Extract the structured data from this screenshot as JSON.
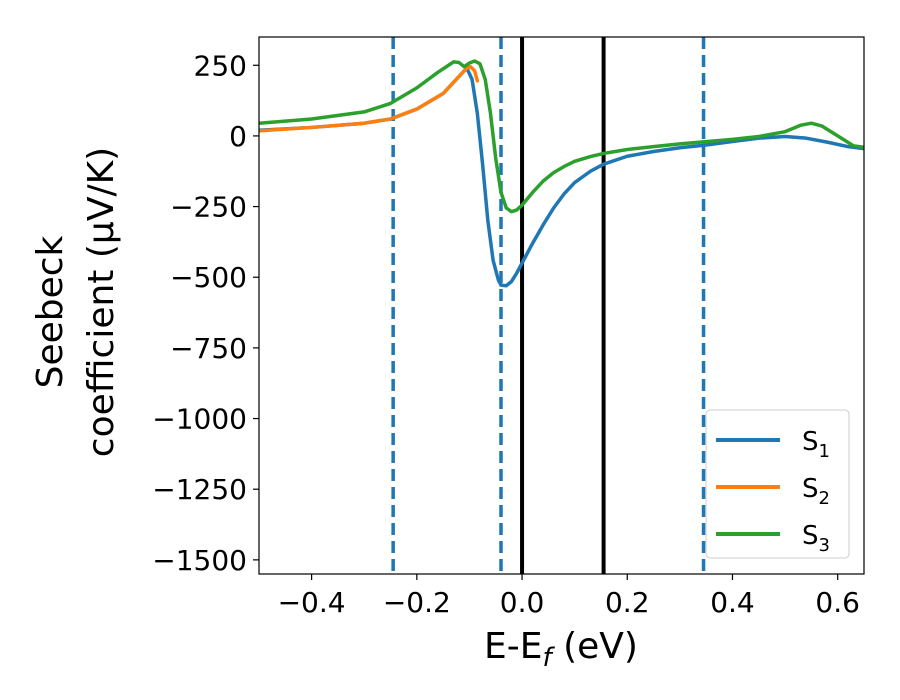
{
  "chart_data": {
    "type": "line",
    "title": "",
    "xlabel": "E-E",
    "xlabel_sub": "f",
    "xlabel_unit": " (eV)",
    "ylabel_line1": "Seebeck",
    "ylabel_line2": "coefficient (μV/K)",
    "xlim": [
      -0.5,
      0.65
    ],
    "ylim": [
      -1550,
      350
    ],
    "x_ticks": [
      {
        "value": -0.4,
        "label": "−0.4"
      },
      {
        "value": -0.2,
        "label": "−0.2"
      },
      {
        "value": 0.0,
        "label": "0.0"
      },
      {
        "value": 0.2,
        "label": "0.2"
      },
      {
        "value": 0.4,
        "label": "0.4"
      },
      {
        "value": 0.6,
        "label": "0.6"
      }
    ],
    "y_ticks": [
      {
        "value": 250,
        "label": "250"
      },
      {
        "value": 0,
        "label": "0"
      },
      {
        "value": -250,
        "label": "−250"
      },
      {
        "value": -500,
        "label": "−500"
      },
      {
        "value": -750,
        "label": "−750"
      },
      {
        "value": -1000,
        "label": "−1000"
      },
      {
        "value": -1250,
        "label": "−1250"
      },
      {
        "value": -1500,
        "label": "−1500"
      }
    ],
    "grid": false,
    "legend_position": "lower-right",
    "vlines": [
      {
        "x": -0.245,
        "style": "dashed",
        "color": "#1f77b4"
      },
      {
        "x": -0.04,
        "style": "dashed",
        "color": "#1f77b4"
      },
      {
        "x": 0.0,
        "style": "solid",
        "color": "#000000"
      },
      {
        "x": 0.155,
        "style": "solid",
        "color": "#000000"
      },
      {
        "x": 0.345,
        "style": "dashed",
        "color": "#1f77b4"
      }
    ],
    "series": [
      {
        "name": "S",
        "sub": "1",
        "color": "#1f77b4",
        "points": [
          [
            -0.5,
            20
          ],
          [
            -0.4,
            30
          ],
          [
            -0.3,
            45
          ],
          [
            -0.25,
            60
          ],
          [
            -0.2,
            95
          ],
          [
            -0.15,
            150
          ],
          [
            -0.12,
            210
          ],
          [
            -0.105,
            240
          ],
          [
            -0.095,
            200
          ],
          [
            -0.085,
            80
          ],
          [
            -0.075,
            -100
          ],
          [
            -0.065,
            -300
          ],
          [
            -0.055,
            -440
          ],
          [
            -0.045,
            -510
          ],
          [
            -0.04,
            -528
          ],
          [
            -0.03,
            -530
          ],
          [
            -0.02,
            -515
          ],
          [
            -0.01,
            -485
          ],
          [
            0.0,
            -450
          ],
          [
            0.02,
            -380
          ],
          [
            0.04,
            -315
          ],
          [
            0.06,
            -255
          ],
          [
            0.08,
            -205
          ],
          [
            0.1,
            -165
          ],
          [
            0.13,
            -125
          ],
          [
            0.155,
            -100
          ],
          [
            0.2,
            -72
          ],
          [
            0.25,
            -55
          ],
          [
            0.3,
            -42
          ],
          [
            0.35,
            -32
          ],
          [
            0.4,
            -20
          ],
          [
            0.45,
            -8
          ],
          [
            0.5,
            -2
          ],
          [
            0.54,
            -8
          ],
          [
            0.58,
            -22
          ],
          [
            0.62,
            -38
          ],
          [
            0.65,
            -45
          ]
        ]
      },
      {
        "name": "S",
        "sub": "2",
        "color": "#ff7f0e",
        "points": [
          [
            -0.5,
            18
          ],
          [
            -0.4,
            30
          ],
          [
            -0.3,
            45
          ],
          [
            -0.25,
            60
          ],
          [
            -0.2,
            95
          ],
          [
            -0.15,
            150
          ],
          [
            -0.12,
            210
          ],
          [
            -0.105,
            240
          ],
          [
            -0.098,
            245
          ],
          [
            -0.09,
            230
          ],
          [
            -0.085,
            195
          ]
        ]
      },
      {
        "name": "S",
        "sub": "3",
        "color": "#2ca02c",
        "points": [
          [
            -0.5,
            45
          ],
          [
            -0.4,
            60
          ],
          [
            -0.3,
            85
          ],
          [
            -0.25,
            115
          ],
          [
            -0.2,
            170
          ],
          [
            -0.16,
            225
          ],
          [
            -0.13,
            262
          ],
          [
            -0.12,
            260
          ],
          [
            -0.11,
            245
          ],
          [
            -0.1,
            258
          ],
          [
            -0.09,
            265
          ],
          [
            -0.08,
            255
          ],
          [
            -0.07,
            200
          ],
          [
            -0.06,
            80
          ],
          [
            -0.05,
            -80
          ],
          [
            -0.04,
            -200
          ],
          [
            -0.03,
            -255
          ],
          [
            -0.02,
            -268
          ],
          [
            -0.01,
            -262
          ],
          [
            0.0,
            -245
          ],
          [
            0.02,
            -200
          ],
          [
            0.04,
            -160
          ],
          [
            0.06,
            -130
          ],
          [
            0.08,
            -108
          ],
          [
            0.1,
            -90
          ],
          [
            0.13,
            -73
          ],
          [
            0.155,
            -62
          ],
          [
            0.2,
            -48
          ],
          [
            0.25,
            -38
          ],
          [
            0.3,
            -28
          ],
          [
            0.35,
            -20
          ],
          [
            0.4,
            -12
          ],
          [
            0.45,
            -2
          ],
          [
            0.5,
            15
          ],
          [
            0.53,
            38
          ],
          [
            0.55,
            45
          ],
          [
            0.57,
            35
          ],
          [
            0.6,
            0
          ],
          [
            0.63,
            -35
          ],
          [
            0.65,
            -40
          ]
        ]
      }
    ]
  }
}
